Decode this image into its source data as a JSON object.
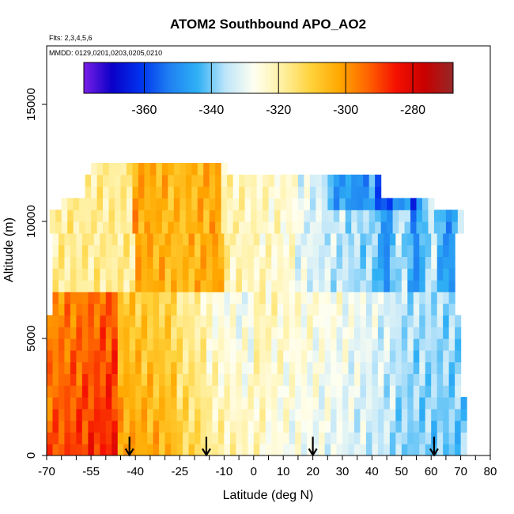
{
  "chart_data": {
    "type": "heatmap",
    "title": "ATOM2 Southbound APO_AO2",
    "subtitle_flights": "Flts: 2,3,4,5,6",
    "subtitle_dates": "MMDD: 0129,0201,0203,0205,0210",
    "xlabel": "Latitude (deg N)",
    "ylabel": "Altitude (m)",
    "xlim": [
      -70,
      80
    ],
    "ylim": [
      0,
      17500
    ],
    "x_tick_labels": [
      "-70",
      "-55",
      "-40",
      "-25",
      "-10",
      "0",
      "10",
      "20",
      "30",
      "40",
      "50",
      "60",
      "70",
      "80"
    ],
    "y_tick_labels": [
      "0",
      "5000",
      "10000",
      "15000"
    ],
    "colorbar": {
      "range": [
        -378,
        -268
      ],
      "ticks": [
        -360,
        -340,
        -320,
        -300,
        -280
      ],
      "tick_labels": [
        "-360",
        "-340",
        "-320",
        "-300",
        "-280"
      ],
      "colors": [
        "#7a1fe6",
        "#0a00c8",
        "#0033ee",
        "#1e7ff2",
        "#2fb0f5",
        "#bfe6fa",
        "#fffff0",
        "#fff0a0",
        "#ffd23a",
        "#ffa800",
        "#ff6400",
        "#f51000",
        "#c80000",
        "#962828"
      ]
    },
    "arrows_latitude": [
      -42,
      -16,
      20,
      61
    ],
    "regions": [
      {
        "lat": [
          -70,
          -45
        ],
        "alt": [
          0,
          7000
        ],
        "value": -292
      },
      {
        "lat": [
          -45,
          -25
        ],
        "alt": [
          0,
          7000
        ],
        "value": -303
      },
      {
        "lat": [
          -25,
          -15
        ],
        "alt": [
          0,
          7000
        ],
        "value": -312
      },
      {
        "lat": [
          -15,
          5
        ],
        "alt": [
          0,
          7000
        ],
        "value": -322
      },
      {
        "lat": [
          5,
          30
        ],
        "alt": [
          0,
          7000
        ],
        "value": -328
      },
      {
        "lat": [
          30,
          48
        ],
        "alt": [
          0,
          7000
        ],
        "value": -336
      },
      {
        "lat": [
          48,
          72
        ],
        "alt": [
          0,
          7000
        ],
        "value": -341
      },
      {
        "lat": [
          -70,
          -40
        ],
        "alt": [
          7000,
          12500
        ],
        "value": -318
      },
      {
        "lat": [
          -40,
          -10
        ],
        "alt": [
          7000,
          12500
        ],
        "value": -306
      },
      {
        "lat": [
          -10,
          15
        ],
        "alt": [
          7000,
          12500
        ],
        "value": -323
      },
      {
        "lat": [
          15,
          40
        ],
        "alt": [
          7000,
          12500
        ],
        "value": -335
      },
      {
        "lat": [
          40,
          70
        ],
        "alt": [
          7000,
          12500
        ],
        "value": -345
      }
    ]
  }
}
